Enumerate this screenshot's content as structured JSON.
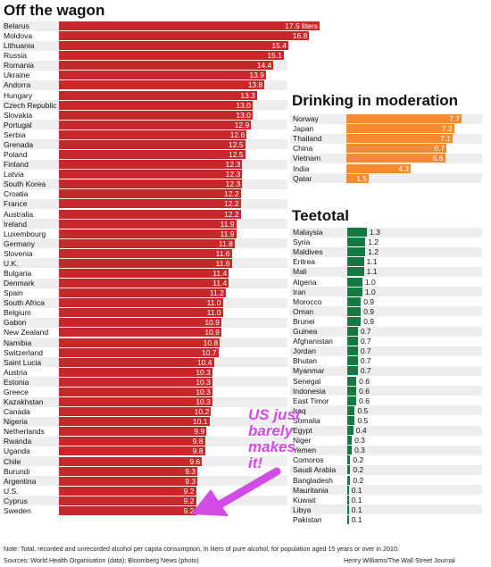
{
  "chart_data": [
    {
      "type": "bar",
      "title": "Off the wagon",
      "orientation": "horizontal",
      "color": "#c8282a",
      "xlim": [
        0,
        17.5
      ],
      "categories": [
        "Belarus",
        "Moldova",
        "Lithuania",
        "Russia",
        "Romania",
        "Ukraine",
        "Andorra",
        "Hungary",
        "Czech Republic",
        "Slovakia",
        "Portugal",
        "Serbia",
        "Grenada",
        "Poland",
        "Finland",
        "Latvia",
        "South Korea",
        "Croatia",
        "France",
        "Australia",
        "Ireland",
        "Luxembourg",
        "Germany",
        "Slovenia",
        "U.K.",
        "Bulgaria",
        "Denmark",
        "Spain",
        "South Africa",
        "Belgium",
        "Gabon",
        "New Zealand",
        "Namibia",
        "Switzerland",
        "Saint Lucia",
        "Austria",
        "Estonia",
        "Greece",
        "Kazakhstan",
        "Canada",
        "Nigeria",
        "Netherlands",
        "Rwanda",
        "Uganda",
        "Chile",
        "Burundi",
        "Argentina",
        "U.S.",
        "Cyprus",
        "Sweden"
      ],
      "values": [
        17.5,
        16.8,
        15.4,
        15.1,
        14.4,
        13.9,
        13.8,
        13.3,
        13.0,
        13.0,
        12.9,
        12.6,
        12.5,
        12.5,
        12.3,
        12.3,
        12.3,
        12.2,
        12.2,
        12.2,
        11.9,
        11.9,
        11.8,
        11.6,
        11.6,
        11.4,
        11.4,
        11.2,
        11.0,
        11.0,
        10.9,
        10.9,
        10.8,
        10.7,
        10.4,
        10.3,
        10.3,
        10.3,
        10.3,
        10.2,
        10.1,
        9.9,
        9.8,
        9.8,
        9.6,
        9.3,
        9.3,
        9.2,
        9.2,
        9.2
      ],
      "labels": [
        "17.5 liters",
        "16.8",
        "15.4",
        "15.1",
        "14.4",
        "13.9",
        "13.8",
        "13.3",
        "13.0",
        "13.0",
        "12.9",
        "12.6",
        "12.5",
        "12.5",
        "12.3",
        "12.3",
        "12.3",
        "12.2",
        "12.2",
        "12.2",
        "11.9",
        "11.9",
        "11.8",
        "11.6",
        "11.6",
        "11.4",
        "11.4",
        "11.2",
        "11.0",
        "11.0",
        "10.9",
        "10.9",
        "10.8",
        "10.7",
        "10.4",
        "10.3",
        "10.3",
        "10.3",
        "10.3",
        "10.2",
        "10.1",
        "9.9",
        "9.8",
        "9.8",
        "9.6",
        "9.3",
        "9.3",
        "9.2",
        "9.2",
        "9.2"
      ]
    },
    {
      "type": "bar",
      "title": "Drinking in moderation",
      "orientation": "horizontal",
      "color": "#f58a2e",
      "xlim": [
        0,
        7.7
      ],
      "categories": [
        "Norway",
        "Japan",
        "Thailand",
        "China",
        "Vietnam",
        "India",
        "Qatar"
      ],
      "values": [
        7.7,
        7.2,
        7.1,
        6.7,
        6.6,
        4.3,
        1.5
      ],
      "labels": [
        "7.7",
        "7.2",
        "7.1",
        "6.7",
        "6.6",
        "4.3",
        "1.5"
      ]
    },
    {
      "type": "bar",
      "title": "Teetotal",
      "orientation": "horizontal",
      "color": "#137a43",
      "xlim": [
        0,
        1.3
      ],
      "categories": [
        "Malaysia",
        "Syria",
        "Maldives",
        "Eritrea",
        "Mali",
        "Algeria",
        "Iran",
        "Morocco",
        "Oman",
        "Brunei",
        "Guinea",
        "Afghanistan",
        "Jordan",
        "Bhutan",
        "Myanmar",
        "Senegal",
        "Indonesia",
        "East Timor",
        "Iraq",
        "Somalia",
        "Egypt",
        "Niger",
        "Yemen",
        "Comoros",
        "Saudi Arabia",
        "Bangladesh",
        "Mauritania",
        "Kuwait",
        "Libya",
        "Pakistan"
      ],
      "values": [
        1.3,
        1.2,
        1.2,
        1.1,
        1.1,
        1.0,
        1.0,
        0.9,
        0.9,
        0.9,
        0.7,
        0.7,
        0.7,
        0.7,
        0.7,
        0.6,
        0.6,
        0.6,
        0.5,
        0.5,
        0.4,
        0.3,
        0.3,
        0.2,
        0.2,
        0.2,
        0.1,
        0.1,
        0.1,
        0.1
      ],
      "labels": [
        "1.3",
        "1.2",
        "1.2",
        "1.1",
        "1.1",
        "1.0",
        "1.0",
        "0.9",
        "0.9",
        "0.9",
        "0.7",
        "0.7",
        "0.7",
        "0.7",
        "0.7",
        "0.6",
        "0.6",
        "0.6",
        "0.5",
        "0.5",
        "0.4",
        "0.3",
        "0.3",
        "0.2",
        "0.2",
        "0.2",
        "0.1",
        "0.1",
        "0.1",
        "0.1"
      ]
    }
  ],
  "annotation": {
    "lines": [
      "US just",
      "barely",
      "makes",
      "it!"
    ],
    "color": "#d24be6"
  },
  "footer": {
    "note": "Note: Total, recorded and unrecorded alcohol per capita consumption, in liters of pure alcohol, for population aged 15 years or over in 2010.",
    "sources": "Sources: World Health Organisation (data); Bloomberg News (photo)",
    "credit": "Henry Williams/The Wall Street Journal"
  }
}
